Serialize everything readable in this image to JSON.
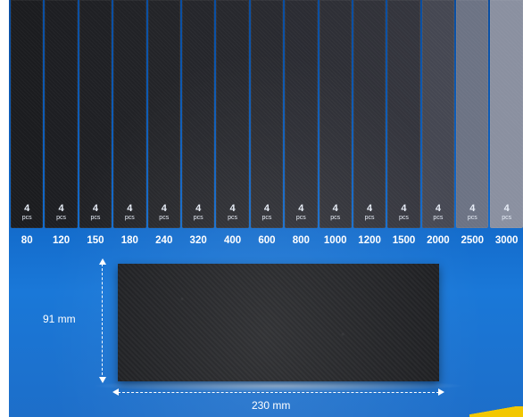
{
  "strips": [
    {
      "grit": "80",
      "qty": "4",
      "unit": "pcs",
      "color": "#1b1c1f"
    },
    {
      "grit": "120",
      "qty": "4",
      "unit": "pcs",
      "color": "#1d1e22"
    },
    {
      "grit": "150",
      "qty": "4",
      "unit": "pcs",
      "color": "#1f2024"
    },
    {
      "grit": "180",
      "qty": "4",
      "unit": "pcs",
      "color": "#212226"
    },
    {
      "grit": "240",
      "qty": "4",
      "unit": "pcs",
      "color": "#232428"
    },
    {
      "grit": "320",
      "qty": "4",
      "unit": "pcs",
      "color": "#25262b"
    },
    {
      "grit": "400",
      "qty": "4",
      "unit": "pcs",
      "color": "#27282d"
    },
    {
      "grit": "600",
      "qty": "4",
      "unit": "pcs",
      "color": "#292a30"
    },
    {
      "grit": "800",
      "qty": "4",
      "unit": "pcs",
      "color": "#2b2c33"
    },
    {
      "grit": "1000",
      "qty": "4",
      "unit": "pcs",
      "color": "#2e2f36"
    },
    {
      "grit": "1200",
      "qty": "4",
      "unit": "pcs",
      "color": "#313239"
    },
    {
      "grit": "1500",
      "qty": "4",
      "unit": "pcs",
      "color": "#34353d"
    },
    {
      "grit": "2000",
      "qty": "4",
      "unit": "pcs",
      "color": "#454752"
    },
    {
      "grit": "2500",
      "qty": "4",
      "unit": "pcs",
      "color": "#6c7384"
    },
    {
      "grit": "3000",
      "qty": "4",
      "unit": "pcs",
      "color": "#8a90a0"
    }
  ],
  "dimensions": {
    "height_label": "91 mm",
    "width_label": "230 mm"
  }
}
